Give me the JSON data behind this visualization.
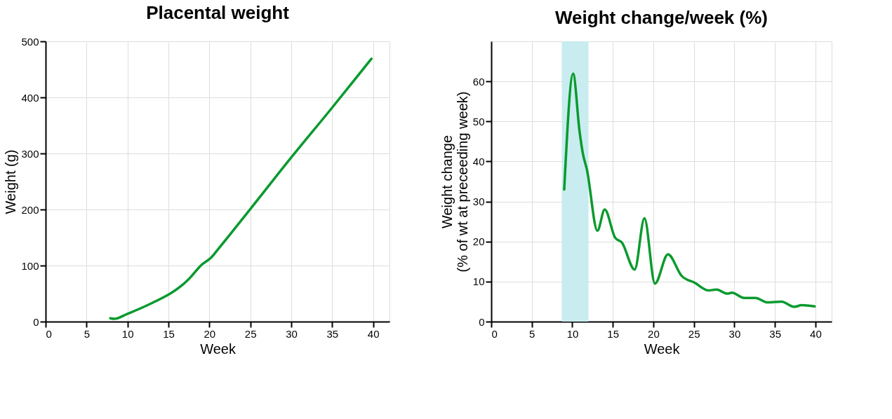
{
  "chart_data": [
    {
      "type": "line",
      "title": "Placental weight",
      "xlabel": "Week",
      "ylabel": "Weight (g)",
      "x": [
        7.9,
        8.4,
        10,
        12.4,
        17.5,
        19.1,
        20.2,
        21,
        24.9,
        29.9,
        34.9,
        39.8
      ],
      "series": [
        {
          "color": "#0a9a2e",
          "values": [
            6,
            5,
            14,
            29,
            76,
            102,
            114,
            128,
            199,
            291,
            380,
            469
          ]
        }
      ],
      "xlim": [
        0,
        42
      ],
      "xticks": [
        0,
        5,
        10,
        15,
        20,
        25,
        30,
        35,
        40
      ],
      "ylim": [
        0,
        500
      ],
      "yticks": [
        0,
        100,
        200,
        300,
        400,
        500
      ],
      "grid": true
    },
    {
      "type": "line",
      "title": "Weight change/week (%)",
      "xlabel": "Week",
      "ylabel": "Weight change\n(% of wt at preceeding week)",
      "x": [
        9.0,
        10.1,
        10.9,
        11.3,
        11.8,
        13.1,
        14.0,
        15.3,
        16.1,
        17.7,
        18.9,
        20.2,
        21.8,
        23.5,
        25.1,
        26.8,
        27.8,
        29.1,
        29.7,
        31.2,
        32.6,
        34.1,
        35.8,
        37.4,
        38.3,
        39.9
      ],
      "series": [
        {
          "color": "#0a9a2e",
          "values": [
            33,
            61.9,
            47.4,
            42,
            38,
            22.7,
            28,
            20.9,
            19.8,
            13,
            25.8,
            9.5,
            16.8,
            11.4,
            9.7,
            7.8,
            8,
            7,
            7.2,
            5.9,
            5.9,
            4.8,
            5,
            3.7,
            4.1,
            3.8
          ]
        }
      ],
      "xlim": [
        0,
        42
      ],
      "xticks": [
        0,
        5,
        10,
        15,
        20,
        25,
        30,
        35,
        40
      ],
      "ylim": [
        0,
        70
      ],
      "yticks": [
        0,
        10,
        20,
        30,
        40,
        50,
        60
      ],
      "grid": true,
      "bands": [
        {
          "axis": "x",
          "from": 8.7,
          "to": 12.0,
          "color": "#c8ecf0"
        }
      ]
    }
  ]
}
